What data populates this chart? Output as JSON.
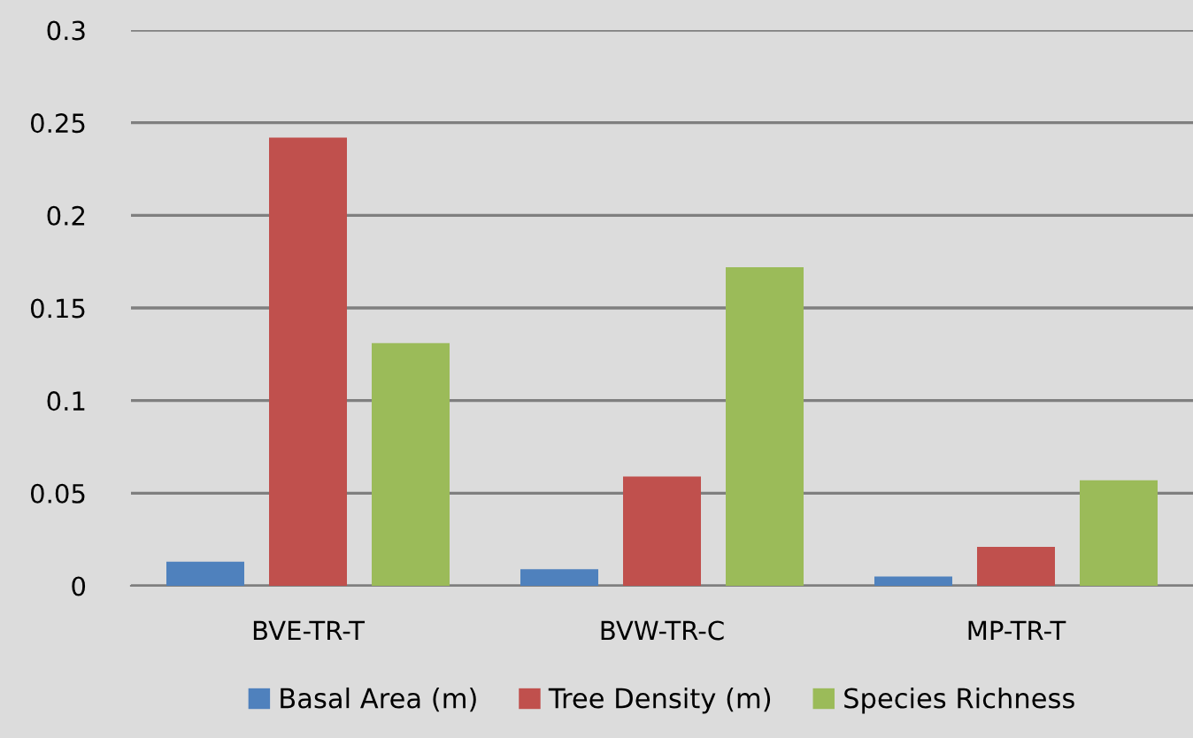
{
  "chart_data": {
    "type": "bar",
    "categories": [
      "BVE-TR-T",
      "BVW-TR-C",
      "MP-TR-T"
    ],
    "series": [
      {
        "name": "Basal Area (m)",
        "color": "#4f81bd",
        "values": [
          0.013,
          0.009,
          0.005
        ]
      },
      {
        "name": "Tree Density (m)",
        "color": "#c0504d",
        "values": [
          0.242,
          0.059,
          0.021
        ]
      },
      {
        "name": "Species Richness",
        "color": "#9bbb59",
        "values": [
          0.131,
          0.172,
          0.057
        ]
      }
    ],
    "ylim": [
      0,
      0.3
    ],
    "yticks": [
      0,
      0.05,
      0.1,
      0.15,
      0.2,
      0.25,
      0.3
    ],
    "grid": "y",
    "legend": "bottom"
  }
}
